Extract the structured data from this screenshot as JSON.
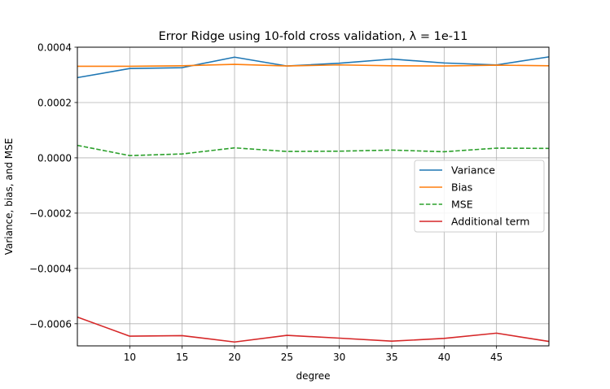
{
  "chart_data": {
    "type": "line",
    "title": "Error Ridge using 10-fold cross validation, λ = 1e-11",
    "xlabel": "degree",
    "ylabel": "Variance, bias, and MSE",
    "x": [
      5,
      10,
      15,
      20,
      25,
      30,
      35,
      40,
      45,
      50
    ],
    "xlim": [
      5,
      50
    ],
    "ylim": [
      -0.00068,
      0.0004
    ],
    "xticks": [
      10,
      15,
      20,
      25,
      30,
      35,
      40,
      45
    ],
    "xtick_labels": [
      "10",
      "15",
      "20",
      "25",
      "30",
      "35",
      "40",
      "45"
    ],
    "yticks": [
      0.0004,
      0.0002,
      0.0,
      -0.0002,
      -0.0004,
      -0.0006
    ],
    "ytick_labels": [
      "0.0004",
      "0.0002",
      "0.0000",
      "−0.0002",
      "−0.0004",
      "−0.0006"
    ],
    "grid": true,
    "legend_position": "center-right",
    "series": [
      {
        "name": "Variance",
        "color": "#1f77b4",
        "style": "solid",
        "values": [
          0.00029,
          0.000323,
          0.000326,
          0.000364,
          0.000332,
          0.000342,
          0.000357,
          0.000343,
          0.000336,
          0.000365
        ]
      },
      {
        "name": "Bias",
        "color": "#ff7f0e",
        "style": "solid",
        "values": [
          0.000331,
          0.000331,
          0.000333,
          0.000338,
          0.000332,
          0.000336,
          0.000333,
          0.000332,
          0.000335,
          0.000333
        ]
      },
      {
        "name": "MSE",
        "color": "#2ca02c",
        "style": "dashed",
        "values": [
          4.5e-05,
          8e-06,
          1.4e-05,
          3.6e-05,
          2.3e-05,
          2.4e-05,
          2.8e-05,
          2.2e-05,
          3.5e-05,
          3.4e-05
        ]
      },
      {
        "name": "Additional term",
        "color": "#d62728",
        "style": "solid",
        "values": [
          -0.000576,
          -0.000645,
          -0.000643,
          -0.000666,
          -0.000642,
          -0.000652,
          -0.000663,
          -0.000653,
          -0.000634,
          -0.000664
        ]
      }
    ]
  }
}
